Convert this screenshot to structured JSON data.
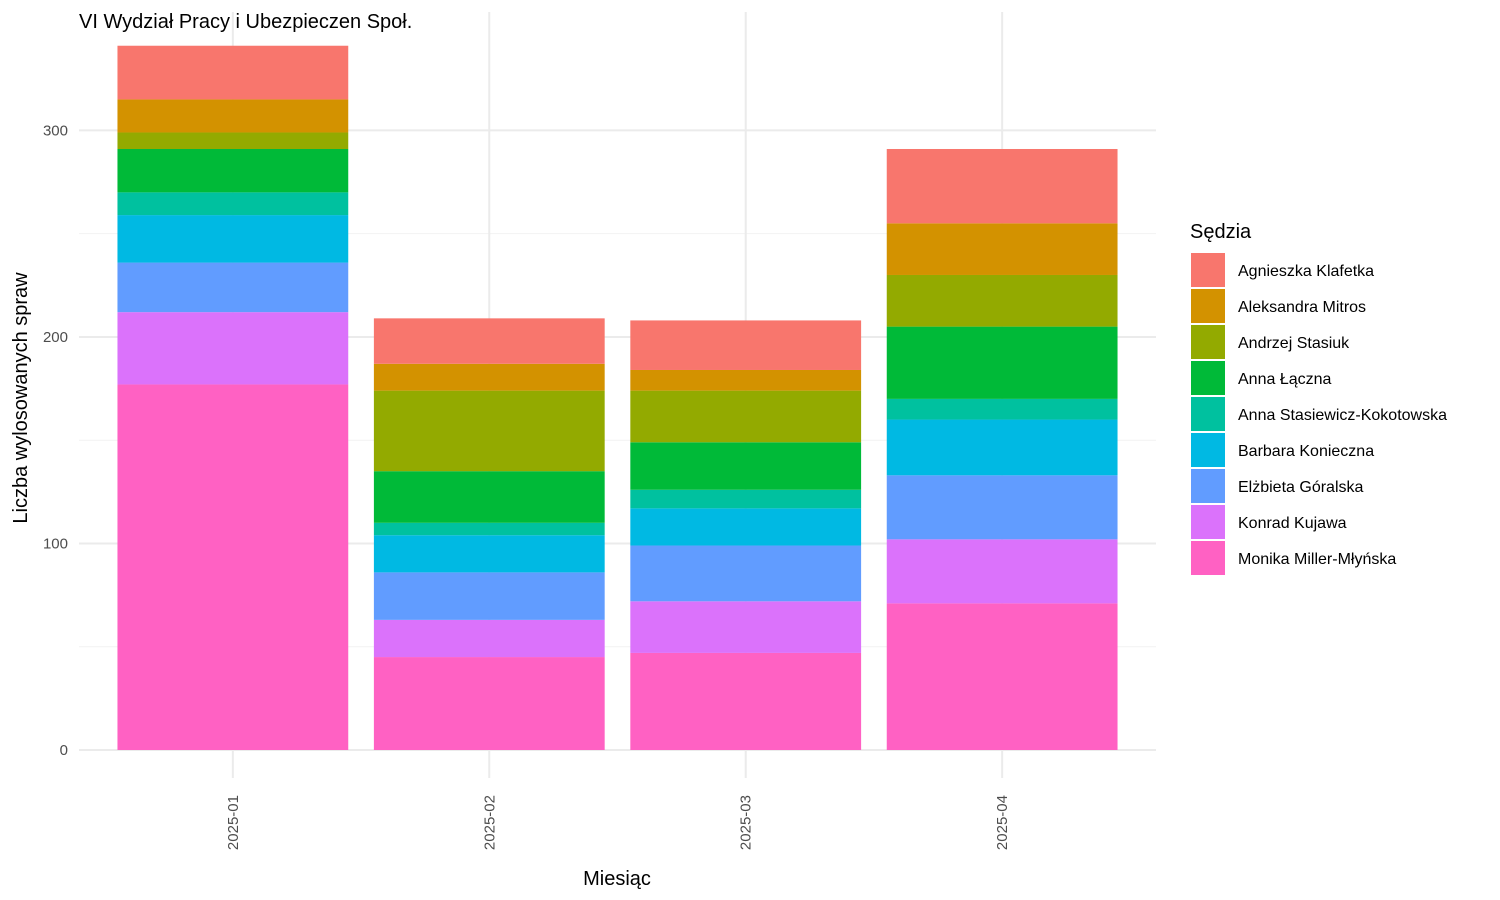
{
  "chart_data": {
    "type": "bar",
    "stacked": true,
    "title": "VI Wydział Pracy i Ubezpieczen Społ.",
    "xlabel": "Miesiąc",
    "ylabel": "Liczba wylosowanych spraw",
    "categories": [
      "2025-01",
      "2025-02",
      "2025-03",
      "2025-04"
    ],
    "ylim": [
      0,
      345
    ],
    "yticks": [
      0,
      100,
      200,
      300
    ],
    "grid": true,
    "legend": {
      "title": "Sędzia",
      "position": "right"
    },
    "series": [
      {
        "name": "Monika Miller-Młyńska",
        "color": "#FF61C3",
        "values": [
          177,
          45,
          47,
          71
        ]
      },
      {
        "name": "Konrad Kujawa",
        "color": "#DB72FB",
        "values": [
          35,
          18,
          25,
          31
        ]
      },
      {
        "name": "Elżbieta Góralska",
        "color": "#619CFF",
        "values": [
          24,
          23,
          27,
          31
        ]
      },
      {
        "name": "Barbara Konieczna",
        "color": "#00B9E3",
        "values": [
          23,
          18,
          18,
          27
        ]
      },
      {
        "name": "Anna Stasiewicz-Kokotowska",
        "color": "#00C19F",
        "values": [
          11,
          6,
          9,
          10
        ]
      },
      {
        "name": "Anna Łączna",
        "color": "#00BA38",
        "values": [
          21,
          25,
          23,
          35
        ]
      },
      {
        "name": "Andrzej Stasiuk",
        "color": "#93AA00",
        "values": [
          8,
          39,
          25,
          25
        ]
      },
      {
        "name": "Aleksandra Mitros",
        "color": "#D39200",
        "values": [
          16,
          13,
          10,
          25
        ]
      },
      {
        "name": "Agnieszka Klafetka",
        "color": "#F8766D",
        "values": [
          26,
          22,
          24,
          36
        ]
      }
    ]
  }
}
